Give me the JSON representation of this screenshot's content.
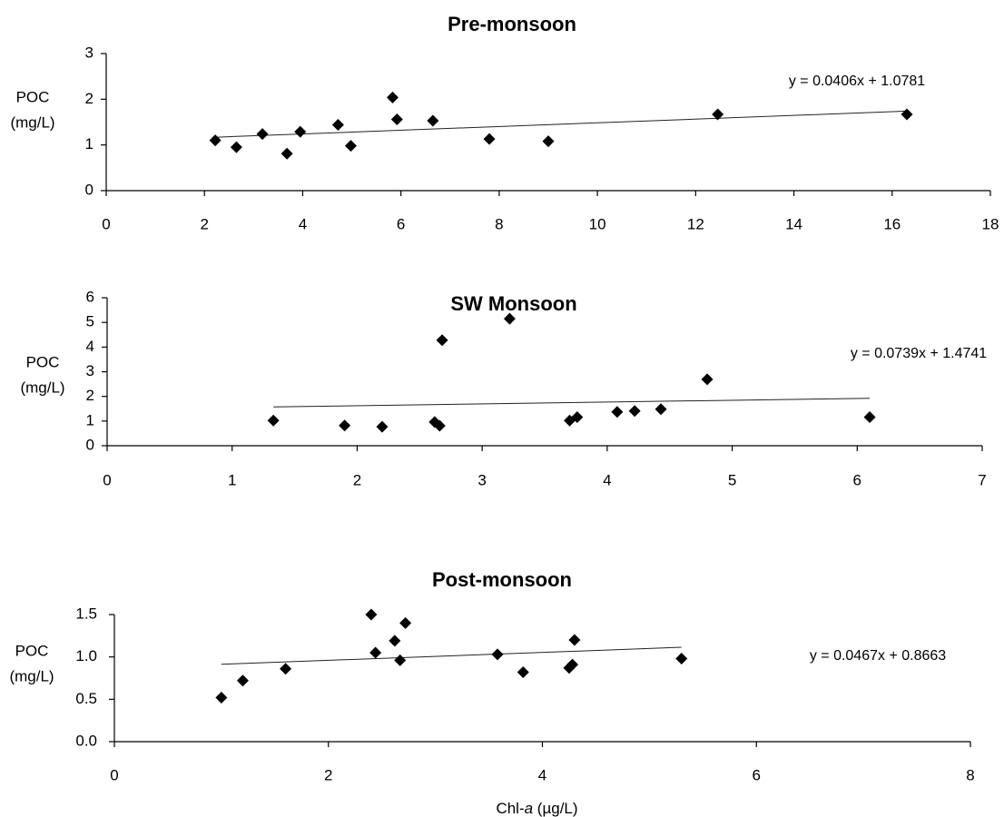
{
  "chart_data": [
    {
      "type": "scatter",
      "title": "Pre-monsoon",
      "ylabel_line1": "POC",
      "ylabel_line2": "(mg/L)",
      "equation": "y = 0.0406x + 1.0781",
      "trendline": {
        "slope": 0.0406,
        "intercept": 1.0781,
        "x_range": [
          2.22,
          16.3
        ]
      },
      "xlim": [
        0,
        18
      ],
      "ylim": [
        0,
        3
      ],
      "xticks": [
        0,
        2,
        4,
        6,
        8,
        10,
        12,
        14,
        16,
        18
      ],
      "yticks": [
        0,
        1,
        2,
        3
      ],
      "ytick_labels": [
        "0",
        "1",
        "2",
        "3"
      ],
      "grid": false,
      "points": [
        {
          "x": 2.22,
          "y": 1.1
        },
        {
          "x": 2.65,
          "y": 0.95
        },
        {
          "x": 3.18,
          "y": 1.24
        },
        {
          "x": 3.68,
          "y": 0.81
        },
        {
          "x": 3.95,
          "y": 1.29
        },
        {
          "x": 4.72,
          "y": 1.44
        },
        {
          "x": 4.98,
          "y": 0.98
        },
        {
          "x": 5.83,
          "y": 2.04
        },
        {
          "x": 5.92,
          "y": 1.56
        },
        {
          "x": 6.65,
          "y": 1.53
        },
        {
          "x": 7.8,
          "y": 1.13
        },
        {
          "x": 9.0,
          "y": 1.08
        },
        {
          "x": 12.45,
          "y": 1.67
        },
        {
          "x": 16.3,
          "y": 1.67
        }
      ]
    },
    {
      "type": "scatter",
      "title": "SW Monsoon",
      "ylabel_line1": "POC",
      "ylabel_line2": "(mg/L)",
      "equation": "y = 0.0739x + 1.4741",
      "trendline": {
        "slope": 0.0739,
        "intercept": 1.4741,
        "x_range": [
          1.33,
          6.1
        ]
      },
      "xlim": [
        0,
        7
      ],
      "ylim": [
        0,
        6
      ],
      "xticks": [
        0,
        1,
        2,
        3,
        4,
        5,
        6,
        7
      ],
      "yticks": [
        0,
        1,
        2,
        3,
        4,
        5,
        6
      ],
      "ytick_labels": [
        "0",
        "1",
        "2",
        "3",
        "4",
        "5",
        "6"
      ],
      "grid": false,
      "points": [
        {
          "x": 1.33,
          "y": 1.02
        },
        {
          "x": 1.9,
          "y": 0.82
        },
        {
          "x": 2.2,
          "y": 0.77
        },
        {
          "x": 2.62,
          "y": 0.96
        },
        {
          "x": 2.66,
          "y": 0.81
        },
        {
          "x": 2.68,
          "y": 4.28
        },
        {
          "x": 3.22,
          "y": 5.15
        },
        {
          "x": 3.7,
          "y": 1.02
        },
        {
          "x": 3.76,
          "y": 1.16
        },
        {
          "x": 4.08,
          "y": 1.37
        },
        {
          "x": 4.22,
          "y": 1.41
        },
        {
          "x": 4.43,
          "y": 1.48
        },
        {
          "x": 4.8,
          "y": 2.69
        },
        {
          "x": 6.1,
          "y": 1.16
        }
      ]
    },
    {
      "type": "scatter",
      "title": "Post-monsoon",
      "ylabel_line1": "POC",
      "ylabel_line2": "(mg/L)",
      "xlabel_pre": "Chl-",
      "xlabel_italic": "a",
      "xlabel_post": " (µg/L)",
      "equation": "y = 0.0467x + 0.8663",
      "trendline": {
        "slope": 0.0467,
        "intercept": 0.8663,
        "x_range": [
          1.0,
          5.3
        ]
      },
      "xlim": [
        0,
        8
      ],
      "ylim": [
        0,
        1.5
      ],
      "xticks": [
        0,
        2,
        4,
        6,
        8
      ],
      "yticks": [
        0,
        0.5,
        1.0,
        1.5
      ],
      "ytick_labels": [
        "0.0",
        "0.5",
        "1.0",
        "1.5"
      ],
      "grid": false,
      "points": [
        {
          "x": 1.0,
          "y": 0.52
        },
        {
          "x": 1.2,
          "y": 0.72
        },
        {
          "x": 1.6,
          "y": 0.86
        },
        {
          "x": 2.4,
          "y": 1.5
        },
        {
          "x": 2.44,
          "y": 1.05
        },
        {
          "x": 2.62,
          "y": 1.19
        },
        {
          "x": 2.67,
          "y": 0.96
        },
        {
          "x": 2.72,
          "y": 1.4
        },
        {
          "x": 3.58,
          "y": 1.03
        },
        {
          "x": 3.82,
          "y": 0.82
        },
        {
          "x": 4.25,
          "y": 0.87
        },
        {
          "x": 4.28,
          "y": 0.91
        },
        {
          "x": 4.3,
          "y": 1.2
        },
        {
          "x": 5.3,
          "y": 0.98
        }
      ]
    }
  ]
}
